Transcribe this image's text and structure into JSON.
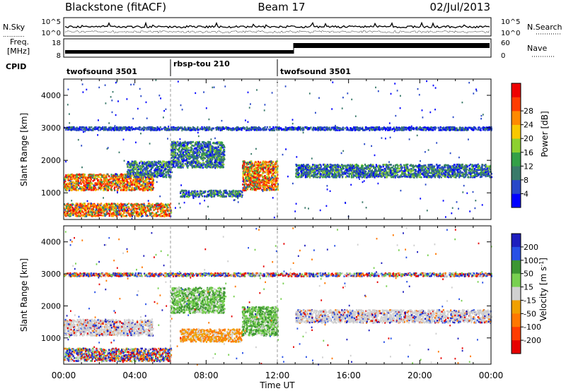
{
  "header": {
    "station": "Blackstone (fitACF)",
    "beam": "Beam 17",
    "date": "02/Jul/2013"
  },
  "noise_panel": {
    "left_label": "N.Sky",
    "right_label": "N.Search",
    "top_tick": "10^5",
    "bottom_tick": "10^0"
  },
  "freq_panel": {
    "left_label_1": "Freq.",
    "left_label_2": "[MHz]",
    "right_label": "Nave",
    "left_ticks": [
      "18",
      "8"
    ],
    "right_ticks": [
      "60",
      "0"
    ]
  },
  "cpid": {
    "label": "CPID",
    "segments": [
      {
        "name": "twofsound 3501",
        "start_hr": 0,
        "end_hr": 6
      },
      {
        "name": "rbsp-tou 210",
        "start_hr": 6,
        "end_hr": 12
      },
      {
        "name": "twofsound 3501",
        "start_hr": 12,
        "end_hr": 24
      }
    ]
  },
  "chart_data": [
    {
      "type": "heatmap",
      "title": "",
      "ylabel": "Slant Range [km]",
      "xlabel": "",
      "ylim": [
        180,
        4500
      ],
      "xlim_hr": [
        0,
        24
      ],
      "yticks": [
        "1000",
        "2000",
        "3000",
        "4000"
      ],
      "colorbar": {
        "label": "Power [dB]",
        "ticks": [
          "4",
          "8",
          "12",
          "16",
          "20",
          "24",
          "28"
        ],
        "colors": [
          "#0000ff",
          "#2848c8",
          "#3a7a6a",
          "#34a048",
          "#8dd030",
          "#f8c800",
          "#ff8a00",
          "#ff3c00",
          "#ee0000"
        ]
      },
      "bands": [
        {
          "name": "near-range E-region echoes",
          "start_hr": 0.0,
          "end_hr": 6.0,
          "range_km": [
            300,
            700
          ],
          "level": "strong"
        },
        {
          "name": "ionospheric band",
          "start_hr": 0.0,
          "end_hr": 5.0,
          "range_km": [
            1100,
            1600
          ],
          "level": "strong"
        },
        {
          "name": "rising band",
          "start_hr": 3.5,
          "end_hr": 6.0,
          "range_km": [
            1500,
            2000
          ],
          "level": "medium"
        },
        {
          "name": "mid-day scatter",
          "start_hr": 6.0,
          "end_hr": 9.0,
          "range_km": [
            1800,
            2600
          ],
          "level": "medium"
        },
        {
          "name": "low band",
          "start_hr": 6.5,
          "end_hr": 10.0,
          "range_km": [
            900,
            1100
          ],
          "level": "medium"
        },
        {
          "name": "descending band",
          "start_hr": 10.0,
          "end_hr": 12.0,
          "range_km": [
            1100,
            2000
          ],
          "level": "strong"
        },
        {
          "name": "afternoon band",
          "start_hr": 13.0,
          "end_hr": 24.0,
          "range_km": [
            1500,
            1900
          ],
          "level": "medium"
        },
        {
          "name": "3000 km line",
          "start_hr": 0.0,
          "end_hr": 24.0,
          "range_km": [
            2950,
            3050
          ],
          "level": "weak"
        }
      ]
    },
    {
      "type": "heatmap",
      "title": "",
      "ylabel": "Slant Range [km]",
      "xlabel": "Time UT",
      "ylim": [
        180,
        4500
      ],
      "xlim_hr": [
        0,
        24
      ],
      "yticks": [
        "1000",
        "2000",
        "3000",
        "4000"
      ],
      "xticks": [
        "00:00",
        "04:00",
        "08:00",
        "12:00",
        "16:00",
        "20:00",
        "00:00"
      ],
      "colorbar": {
        "label": "Velocity [m s^-1]",
        "ticks": [
          "200",
          "100",
          "50",
          "15",
          "-15",
          "-50",
          "-100",
          "-200"
        ],
        "colors": [
          "#1e1ebe",
          "#2850e6",
          "#3c9632",
          "#78d050",
          "#d0d0d0",
          "#f0a000",
          "#ff7800",
          "#ff3c00",
          "#e60000"
        ]
      },
      "bands": [
        {
          "name": "near-range echoes",
          "start_hr": 0.0,
          "end_hr": 6.0,
          "range_km": [
            300,
            700
          ],
          "level": "mixed"
        },
        {
          "name": "ionospheric band",
          "start_hr": 0.0,
          "end_hr": 5.0,
          "range_km": [
            1100,
            1600
          ],
          "level": "ground"
        },
        {
          "name": "mid-day scatter",
          "start_hr": 6.0,
          "end_hr": 9.0,
          "range_km": [
            1800,
            2600
          ],
          "level": "positive"
        },
        {
          "name": "orange band",
          "start_hr": 6.5,
          "end_hr": 10.0,
          "range_km": [
            900,
            1300
          ],
          "level": "negative"
        },
        {
          "name": "descending band",
          "start_hr": 10.0,
          "end_hr": 12.0,
          "range_km": [
            1100,
            2000
          ],
          "level": "positive"
        },
        {
          "name": "afternoon band",
          "start_hr": 13.0,
          "end_hr": 24.0,
          "range_km": [
            1500,
            1900
          ],
          "level": "ground"
        },
        {
          "name": "3000 km line",
          "start_hr": 0.0,
          "end_hr": 24.0,
          "range_km": [
            2950,
            3050
          ],
          "level": "mixed"
        }
      ]
    }
  ]
}
